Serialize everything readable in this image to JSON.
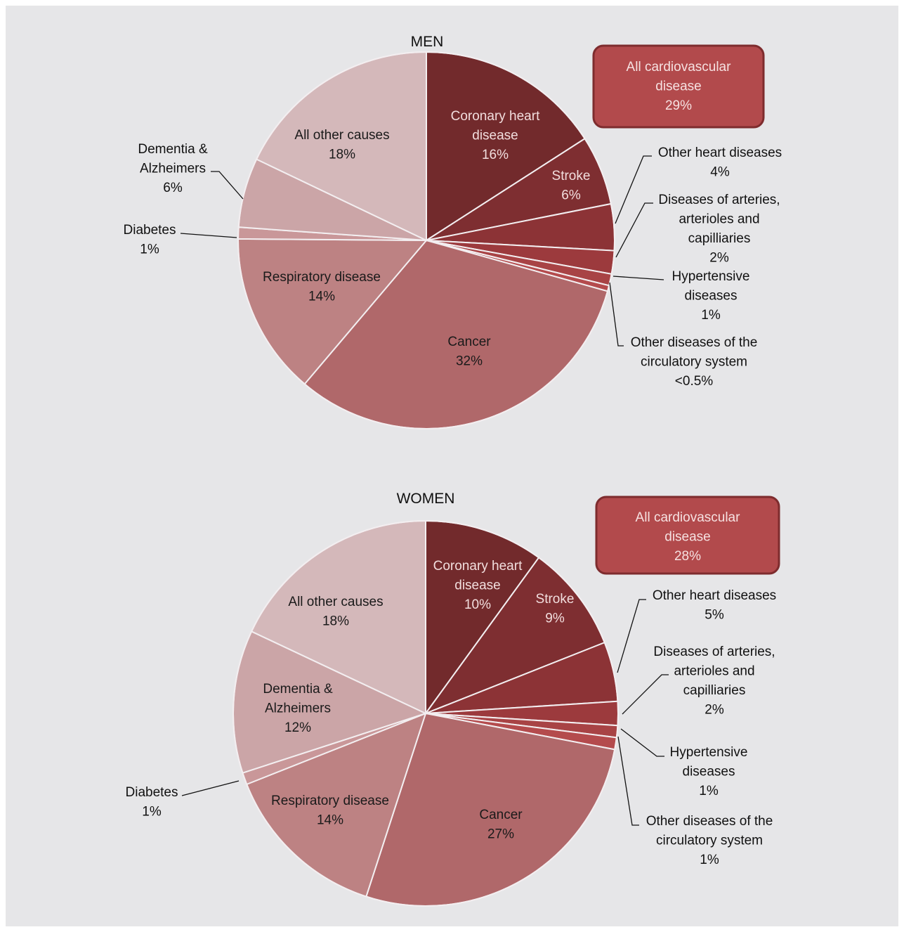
{
  "chart_data": [
    {
      "type": "pie",
      "title": "MEN",
      "summary_box": {
        "lines": [
          "All cardiovascular",
          "disease",
          "29%"
        ]
      },
      "slices": [
        {
          "name": "Coronary heart disease",
          "value": 16,
          "color": "#722a2c",
          "label_lines": [
            "Coronary heart",
            "disease",
            "16%"
          ],
          "label_style": "inside-dark"
        },
        {
          "name": "Stroke",
          "value": 6,
          "color": "#7e2e31",
          "label_lines": [
            "Stroke",
            "6%"
          ],
          "label_style": "inside-dark"
        },
        {
          "name": "Other heart diseases",
          "value": 4,
          "color": "#8c3336",
          "label_lines": [
            "Other heart diseases",
            "4%"
          ],
          "label_style": "outside"
        },
        {
          "name": "Diseases of arteries, arterioles and capilliaries",
          "value": 2,
          "color": "#9c3a3d",
          "label_lines": [
            "Diseases of arteries,",
            "arterioles and",
            "capilliaries",
            "2%"
          ],
          "label_style": "outside"
        },
        {
          "name": "Hypertensive diseases",
          "value": 1,
          "color": "#a84345",
          "label_lines": [
            "Hypertensive",
            "diseases",
            "1%"
          ],
          "label_style": "outside"
        },
        {
          "name": "Other diseases of the circulatory system",
          "value": 0.5,
          "color": "#b44b4d",
          "label_lines": [
            "Other diseases of the",
            "circulatory system",
            "<0.5%"
          ],
          "label_style": "outside"
        },
        {
          "name": "Cancer",
          "value": 32,
          "color": "#b0686a",
          "label_lines": [
            "Cancer",
            "32%"
          ],
          "label_style": "inside"
        },
        {
          "name": "Respiratory disease",
          "value": 14,
          "color": "#bd8283",
          "label_lines": [
            "Respiratory disease",
            "14%"
          ],
          "label_style": "inside"
        },
        {
          "name": "Diabetes",
          "value": 1,
          "color": "#c99799",
          "label_lines": [
            "Diabetes",
            "1%"
          ],
          "label_style": "outside"
        },
        {
          "name": "Dementia & Alzheimers",
          "value": 6,
          "color": "#cba5a7",
          "label_lines": [
            "Dementia &",
            "Alzheimers",
            "6%"
          ],
          "label_style": "outside"
        },
        {
          "name": "All other causes",
          "value": 18,
          "color": "#d4b8ba",
          "label_lines": [
            "All other causes",
            "18%"
          ],
          "label_style": "inside"
        }
      ]
    },
    {
      "type": "pie",
      "title": "WOMEN",
      "summary_box": {
        "lines": [
          "All cardiovascular",
          "disease",
          "28%"
        ]
      },
      "slices": [
        {
          "name": "Coronary heart disease",
          "value": 10,
          "color": "#722a2c",
          "label_lines": [
            "Coronary heart",
            "disease",
            "10%"
          ],
          "label_style": "inside-dark"
        },
        {
          "name": "Stroke",
          "value": 9,
          "color": "#7e2e31",
          "label_lines": [
            "Stroke",
            "9%"
          ],
          "label_style": "inside-dark"
        },
        {
          "name": "Other heart diseases",
          "value": 5,
          "color": "#8c3336",
          "label_lines": [
            "Other heart diseases",
            "5%"
          ],
          "label_style": "outside"
        },
        {
          "name": "Diseases of arteries, arterioles and capilliaries",
          "value": 2,
          "color": "#9c3a3d",
          "label_lines": [
            "Diseases of arteries,",
            "arterioles and",
            "capilliaries",
            "2%"
          ],
          "label_style": "outside"
        },
        {
          "name": "Hypertensive diseases",
          "value": 1,
          "color": "#a84345",
          "label_lines": [
            "Hypertensive",
            "diseases",
            "1%"
          ],
          "label_style": "outside"
        },
        {
          "name": "Other diseases of the circulatory system",
          "value": 1,
          "color": "#b44b4d",
          "label_lines": [
            "Other diseases of the",
            "circulatory system",
            "1%"
          ],
          "label_style": "outside"
        },
        {
          "name": "Cancer",
          "value": 27,
          "color": "#b0686a",
          "label_lines": [
            "Cancer",
            "27%"
          ],
          "label_style": "inside"
        },
        {
          "name": "Respiratory disease",
          "value": 14,
          "color": "#bd8283",
          "label_lines": [
            "Respiratory disease",
            "14%"
          ],
          "label_style": "inside"
        },
        {
          "name": "Diabetes",
          "value": 1,
          "color": "#c99799",
          "label_lines": [
            "Diabetes",
            "1%"
          ],
          "label_style": "outside"
        },
        {
          "name": "Dementia & Alzheimers",
          "value": 12,
          "color": "#cba5a7",
          "label_lines": [
            "Dementia &",
            "Alzheimers",
            "12%"
          ],
          "label_style": "inside"
        },
        {
          "name": "All other causes",
          "value": 18,
          "color": "#d4b8ba",
          "label_lines": [
            "All other causes",
            "18%"
          ],
          "label_style": "inside"
        }
      ]
    }
  ]
}
